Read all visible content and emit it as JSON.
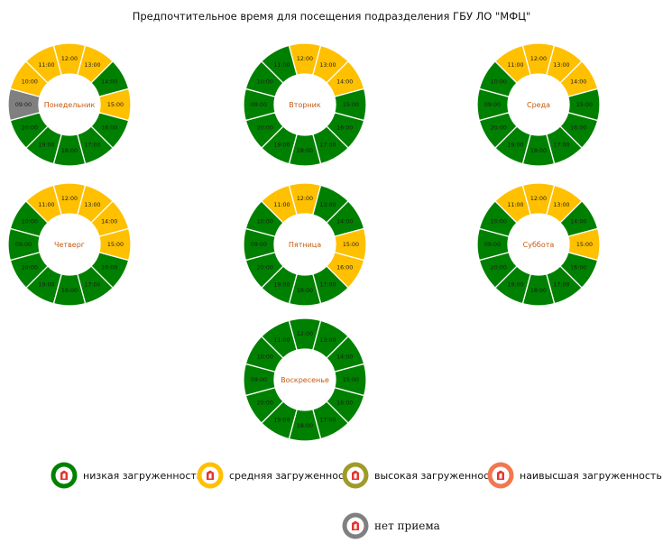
{
  "title": "Предпочтительное время для посещения подразделения ГБУ ЛО \"МФЦ\"",
  "colors": {
    "low": "#008000",
    "medium": "#FFC000",
    "high": "#A09A26",
    "highest": "#F07850",
    "closed": "#808080",
    "label": "#C55A11"
  },
  "chart_data": [
    {
      "type": "donut",
      "day": "Понедельник",
      "slots": [
        {
          "time": "09:00",
          "load": "closed"
        },
        {
          "time": "10:00",
          "load": "medium"
        },
        {
          "time": "11:00",
          "load": "medium"
        },
        {
          "time": "12:00",
          "load": "medium"
        },
        {
          "time": "13:00",
          "load": "medium"
        },
        {
          "time": "14:00",
          "load": "low"
        },
        {
          "time": "15:00",
          "load": "medium"
        },
        {
          "time": "16:00",
          "load": "low"
        },
        {
          "time": "17:00",
          "load": "low"
        },
        {
          "time": "18:00",
          "load": "low"
        },
        {
          "time": "19:00",
          "load": "low"
        },
        {
          "time": "20:00",
          "load": "low"
        }
      ]
    },
    {
      "type": "donut",
      "day": "Вторник",
      "slots": [
        {
          "time": "09:00",
          "load": "low"
        },
        {
          "time": "10:00",
          "load": "low"
        },
        {
          "time": "11:00",
          "load": "low"
        },
        {
          "time": "12:00",
          "load": "medium"
        },
        {
          "time": "13:00",
          "load": "medium"
        },
        {
          "time": "14:00",
          "load": "medium"
        },
        {
          "time": "15:00",
          "load": "low"
        },
        {
          "time": "16:00",
          "load": "low"
        },
        {
          "time": "17:00",
          "load": "low"
        },
        {
          "time": "18:00",
          "load": "low"
        },
        {
          "time": "19:00",
          "load": "low"
        },
        {
          "time": "20:00",
          "load": "low"
        }
      ]
    },
    {
      "type": "donut",
      "day": "Среда",
      "slots": [
        {
          "time": "09:00",
          "load": "low"
        },
        {
          "time": "10:00",
          "load": "low"
        },
        {
          "time": "11:00",
          "load": "medium"
        },
        {
          "time": "12:00",
          "load": "medium"
        },
        {
          "time": "13:00",
          "load": "medium"
        },
        {
          "time": "14:00",
          "load": "medium"
        },
        {
          "time": "15:00",
          "load": "low"
        },
        {
          "time": "16:00",
          "load": "low"
        },
        {
          "time": "17:00",
          "load": "low"
        },
        {
          "time": "18:00",
          "load": "low"
        },
        {
          "time": "19:00",
          "load": "low"
        },
        {
          "time": "20:00",
          "load": "low"
        }
      ]
    },
    {
      "type": "donut",
      "day": "Четверг",
      "slots": [
        {
          "time": "09:00",
          "load": "low"
        },
        {
          "time": "10:00",
          "load": "low"
        },
        {
          "time": "11:00",
          "load": "medium"
        },
        {
          "time": "12:00",
          "load": "medium"
        },
        {
          "time": "13:00",
          "load": "medium"
        },
        {
          "time": "14:00",
          "load": "medium"
        },
        {
          "time": "15:00",
          "load": "medium"
        },
        {
          "time": "16:00",
          "load": "low"
        },
        {
          "time": "17:00",
          "load": "low"
        },
        {
          "time": "18:00",
          "load": "low"
        },
        {
          "time": "19:00",
          "load": "low"
        },
        {
          "time": "20:00",
          "load": "low"
        }
      ]
    },
    {
      "type": "donut",
      "day": "Пятница",
      "slots": [
        {
          "time": "09:00",
          "load": "low"
        },
        {
          "time": "10:00",
          "load": "low"
        },
        {
          "time": "11:00",
          "load": "medium"
        },
        {
          "time": "12:00",
          "load": "medium"
        },
        {
          "time": "13:00",
          "load": "low"
        },
        {
          "time": "14:00",
          "load": "low"
        },
        {
          "time": "15:00",
          "load": "medium"
        },
        {
          "time": "16:00",
          "load": "medium"
        },
        {
          "time": "17:00",
          "load": "low"
        },
        {
          "time": "18:00",
          "load": "low"
        },
        {
          "time": "19:00",
          "load": "low"
        },
        {
          "time": "20:00",
          "load": "low"
        }
      ]
    },
    {
      "type": "donut",
      "day": "Суббота",
      "slots": [
        {
          "time": "09:00",
          "load": "low"
        },
        {
          "time": "10:00",
          "load": "low"
        },
        {
          "time": "11:00",
          "load": "medium"
        },
        {
          "time": "12:00",
          "load": "medium"
        },
        {
          "time": "13:00",
          "load": "medium"
        },
        {
          "time": "14:00",
          "load": "low"
        },
        {
          "time": "15:00",
          "load": "medium"
        },
        {
          "time": "16:00",
          "load": "low"
        },
        {
          "time": "17:00",
          "load": "low"
        },
        {
          "time": "18:00",
          "load": "low"
        },
        {
          "time": "19:00",
          "load": "low"
        },
        {
          "time": "20:00",
          "load": "low"
        }
      ]
    },
    {
      "type": "donut",
      "day": "Воскресенье",
      "slots": [
        {
          "time": "09:00",
          "load": "low"
        },
        {
          "time": "10:00",
          "load": "low"
        },
        {
          "time": "11:00",
          "load": "low"
        },
        {
          "time": "12:00",
          "load": "low"
        },
        {
          "time": "13:00",
          "load": "low"
        },
        {
          "time": "14:00",
          "load": "low"
        },
        {
          "time": "15:00",
          "load": "low"
        },
        {
          "time": "16:00",
          "load": "low"
        },
        {
          "time": "17:00",
          "load": "low"
        },
        {
          "time": "18:00",
          "load": "low"
        },
        {
          "time": "19:00",
          "load": "low"
        },
        {
          "time": "20:00",
          "load": "low"
        }
      ]
    }
  ],
  "legend": [
    {
      "key": "low",
      "label": "низкая загруженность",
      "icon": "low-load-icon"
    },
    {
      "key": "medium",
      "label": "средняя загруженность",
      "icon": "medium-load-icon"
    },
    {
      "key": "high",
      "label": "высокая загруженность",
      "icon": "high-load-icon"
    },
    {
      "key": "highest",
      "label": "наивысшая загруженность",
      "icon": "highest-load-icon"
    },
    {
      "key": "closed",
      "label": "нет приема",
      "icon": "closed-icon"
    }
  ]
}
